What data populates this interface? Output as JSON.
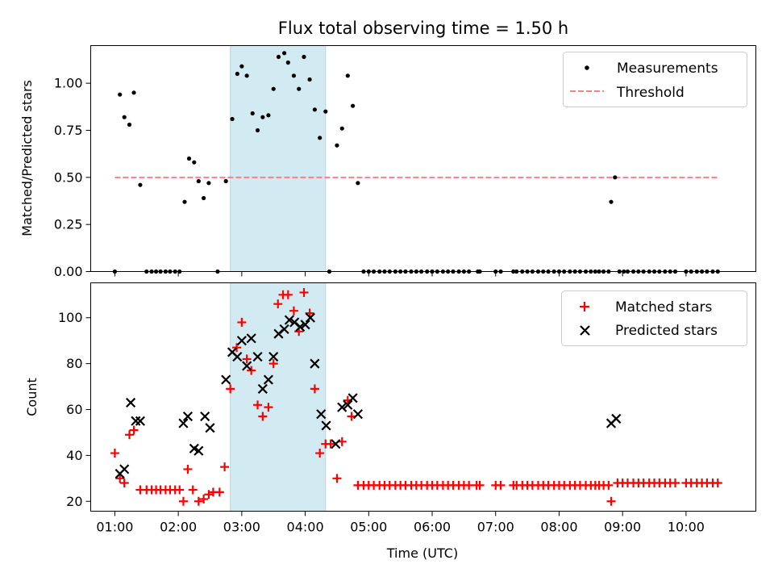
{
  "chart_data": [
    {
      "type": "scatter",
      "title": "Flux total observing time = 1.50 h",
      "ylabel": "Matched/Predicted stars",
      "xlabel": "",
      "xlim": [
        0.62,
        11.1
      ],
      "ylim": [
        0.0,
        1.2
      ],
      "x_ticks": [
        "01:00",
        "02:00",
        "03:00",
        "04:00",
        "05:00",
        "06:00",
        "07:00",
        "08:00",
        "09:00",
        "10:00"
      ],
      "y_ticks": [
        "0.00",
        "0.25",
        "0.50",
        "0.75",
        "1.00"
      ],
      "highlight_span": [
        2.82,
        4.32
      ],
      "highlight_color": "#add8e6",
      "legend": [
        "Measurements",
        "Threshold"
      ],
      "legend_position": "top-right",
      "threshold": {
        "name": "Threshold",
        "value": 0.5,
        "x_range": [
          1.0,
          10.5
        ],
        "color": "#ff7f7f",
        "style": "dashed"
      },
      "series": [
        {
          "name": "Measurements",
          "marker": "dot",
          "color": "#000000",
          "points": [
            [
              1.0,
              0.0
            ],
            [
              1.08,
              0.94
            ],
            [
              1.15,
              0.82
            ],
            [
              1.23,
              0.78
            ],
            [
              1.3,
              0.95
            ],
            [
              1.4,
              0.46
            ],
            [
              1.5,
              0.0
            ],
            [
              1.58,
              0.0
            ],
            [
              1.65,
              0.0
            ],
            [
              1.72,
              0.0
            ],
            [
              1.8,
              0.0
            ],
            [
              1.87,
              0.0
            ],
            [
              1.95,
              0.0
            ],
            [
              2.02,
              0.0
            ],
            [
              2.1,
              0.37
            ],
            [
              2.17,
              0.6
            ],
            [
              2.25,
              0.58
            ],
            [
              2.32,
              0.48
            ],
            [
              2.4,
              0.39
            ],
            [
              2.48,
              0.47
            ],
            [
              2.62,
              0.0
            ],
            [
              2.75,
              0.48
            ],
            [
              2.85,
              0.81
            ],
            [
              2.93,
              1.05
            ],
            [
              3.0,
              1.09
            ],
            [
              3.08,
              1.04
            ],
            [
              3.17,
              0.84
            ],
            [
              3.25,
              0.75
            ],
            [
              3.33,
              0.82
            ],
            [
              3.42,
              0.83
            ],
            [
              3.5,
              0.97
            ],
            [
              3.58,
              1.14
            ],
            [
              3.67,
              1.16
            ],
            [
              3.73,
              1.11
            ],
            [
              3.82,
              1.04
            ],
            [
              3.9,
              0.97
            ],
            [
              3.98,
              1.14
            ],
            [
              4.07,
              1.02
            ],
            [
              4.15,
              0.86
            ],
            [
              4.23,
              0.71
            ],
            [
              4.32,
              0.85
            ],
            [
              4.38,
              0.0
            ],
            [
              4.5,
              0.67
            ],
            [
              4.58,
              0.76
            ],
            [
              4.67,
              1.04
            ],
            [
              4.75,
              0.88
            ],
            [
              4.83,
              0.47
            ],
            [
              4.92,
              0.0
            ],
            [
              5.0,
              0.0
            ],
            [
              5.08,
              0.0
            ],
            [
              5.17,
              0.0
            ],
            [
              5.25,
              0.0
            ],
            [
              5.33,
              0.0
            ],
            [
              5.42,
              0.0
            ],
            [
              5.5,
              0.0
            ],
            [
              5.58,
              0.0
            ],
            [
              5.67,
              0.0
            ],
            [
              5.75,
              0.0
            ],
            [
              5.83,
              0.0
            ],
            [
              5.92,
              0.0
            ],
            [
              6.0,
              0.0
            ],
            [
              6.08,
              0.0
            ],
            [
              6.17,
              0.0
            ],
            [
              6.25,
              0.0
            ],
            [
              6.33,
              0.0
            ],
            [
              6.42,
              0.0
            ],
            [
              6.5,
              0.0
            ],
            [
              6.58,
              0.0
            ],
            [
              6.72,
              0.0
            ],
            [
              6.75,
              0.0
            ],
            [
              7.0,
              0.0
            ],
            [
              7.08,
              0.0
            ],
            [
              7.28,
              0.0
            ],
            [
              7.33,
              0.0
            ],
            [
              7.42,
              0.0
            ],
            [
              7.5,
              0.0
            ],
            [
              7.58,
              0.0
            ],
            [
              7.67,
              0.0
            ],
            [
              7.75,
              0.0
            ],
            [
              7.83,
              0.0
            ],
            [
              7.92,
              0.0
            ],
            [
              8.0,
              0.0
            ],
            [
              8.08,
              0.0
            ],
            [
              8.17,
              0.0
            ],
            [
              8.25,
              0.0
            ],
            [
              8.33,
              0.0
            ],
            [
              8.42,
              0.0
            ],
            [
              8.5,
              0.0
            ],
            [
              8.57,
              0.0
            ],
            [
              8.63,
              0.0
            ],
            [
              8.7,
              0.0
            ],
            [
              8.78,
              0.0
            ],
            [
              8.82,
              0.37
            ],
            [
              8.88,
              0.5
            ],
            [
              8.95,
              0.0
            ],
            [
              9.02,
              0.0
            ],
            [
              9.08,
              0.0
            ],
            [
              9.17,
              0.0
            ],
            [
              9.25,
              0.0
            ],
            [
              9.33,
              0.0
            ],
            [
              9.42,
              0.0
            ],
            [
              9.5,
              0.0
            ],
            [
              9.58,
              0.0
            ],
            [
              9.67,
              0.0
            ],
            [
              9.75,
              0.0
            ],
            [
              9.83,
              0.0
            ],
            [
              10.0,
              0.0
            ],
            [
              10.08,
              0.0
            ],
            [
              10.17,
              0.0
            ],
            [
              10.25,
              0.0
            ],
            [
              10.33,
              0.0
            ],
            [
              10.42,
              0.0
            ],
            [
              10.5,
              0.0
            ]
          ]
        }
      ]
    },
    {
      "type": "scatter",
      "title": "",
      "ylabel": "Count",
      "xlabel": "Time (UTC)",
      "xlim": [
        0.62,
        11.1
      ],
      "ylim": [
        15.7,
        115.2
      ],
      "x_ticks": [
        "01:00",
        "02:00",
        "03:00",
        "04:00",
        "05:00",
        "06:00",
        "07:00",
        "08:00",
        "09:00",
        "10:00"
      ],
      "y_ticks": [
        "20",
        "40",
        "60",
        "80",
        "100"
      ],
      "highlight_span": [
        2.82,
        4.32
      ],
      "highlight_color": "#add8e6",
      "legend": [
        "Matched stars",
        "Predicted stars"
      ],
      "legend_position": "top-right",
      "series": [
        {
          "name": "Matched stars",
          "marker": "plus",
          "color": "#ff0000",
          "points": [
            [
              1.0,
              41
            ],
            [
              1.08,
              30
            ],
            [
              1.15,
              28
            ],
            [
              1.23,
              49
            ],
            [
              1.3,
              51
            ],
            [
              1.4,
              25
            ],
            [
              1.5,
              25
            ],
            [
              1.58,
              25
            ],
            [
              1.65,
              25
            ],
            [
              1.72,
              25
            ],
            [
              1.8,
              25
            ],
            [
              1.87,
              25
            ],
            [
              1.95,
              25
            ],
            [
              2.02,
              25
            ],
            [
              2.08,
              20
            ],
            [
              2.15,
              34
            ],
            [
              2.23,
              25
            ],
            [
              2.32,
              20
            ],
            [
              2.4,
              21
            ],
            [
              2.48,
              23
            ],
            [
              2.55,
              24
            ],
            [
              2.65,
              24
            ],
            [
              2.73,
              35
            ],
            [
              2.82,
              69
            ],
            [
              2.92,
              87
            ],
            [
              3.0,
              98
            ],
            [
              3.08,
              82
            ],
            [
              3.15,
              77
            ],
            [
              3.25,
              62
            ],
            [
              3.33,
              57
            ],
            [
              3.42,
              61
            ],
            [
              3.5,
              80
            ],
            [
              3.57,
              106
            ],
            [
              3.65,
              110
            ],
            [
              3.73,
              110
            ],
            [
              3.82,
              103
            ],
            [
              3.9,
              94
            ],
            [
              3.98,
              111
            ],
            [
              4.07,
              102
            ],
            [
              4.15,
              69
            ],
            [
              4.23,
              41
            ],
            [
              4.32,
              45
            ],
            [
              4.4,
              45
            ],
            [
              4.5,
              30
            ],
            [
              4.58,
              46
            ],
            [
              4.67,
              64
            ],
            [
              4.73,
              57
            ],
            [
              4.83,
              27
            ],
            [
              4.92,
              27
            ],
            [
              5.0,
              27
            ],
            [
              5.08,
              27
            ],
            [
              5.17,
              27
            ],
            [
              5.25,
              27
            ],
            [
              5.33,
              27
            ],
            [
              5.42,
              27
            ],
            [
              5.5,
              27
            ],
            [
              5.58,
              27
            ],
            [
              5.67,
              27
            ],
            [
              5.75,
              27
            ],
            [
              5.83,
              27
            ],
            [
              5.92,
              27
            ],
            [
              6.0,
              27
            ],
            [
              6.08,
              27
            ],
            [
              6.17,
              27
            ],
            [
              6.25,
              27
            ],
            [
              6.33,
              27
            ],
            [
              6.42,
              27
            ],
            [
              6.5,
              27
            ],
            [
              6.58,
              27
            ],
            [
              6.7,
              27
            ],
            [
              6.75,
              27
            ],
            [
              7.0,
              27
            ],
            [
              7.08,
              27
            ],
            [
              7.28,
              27
            ],
            [
              7.33,
              27
            ],
            [
              7.42,
              27
            ],
            [
              7.5,
              27
            ],
            [
              7.58,
              27
            ],
            [
              7.67,
              27
            ],
            [
              7.75,
              27
            ],
            [
              7.83,
              27
            ],
            [
              7.92,
              27
            ],
            [
              8.0,
              27
            ],
            [
              8.08,
              27
            ],
            [
              8.17,
              27
            ],
            [
              8.25,
              27
            ],
            [
              8.33,
              27
            ],
            [
              8.42,
              27
            ],
            [
              8.5,
              27
            ],
            [
              8.57,
              27
            ],
            [
              8.63,
              27
            ],
            [
              8.7,
              27
            ],
            [
              8.78,
              27
            ],
            [
              8.82,
              20
            ],
            [
              8.92,
              28
            ],
            [
              9.0,
              28
            ],
            [
              9.08,
              28
            ],
            [
              9.17,
              28
            ],
            [
              9.25,
              28
            ],
            [
              9.33,
              28
            ],
            [
              9.42,
              28
            ],
            [
              9.5,
              28
            ],
            [
              9.58,
              28
            ],
            [
              9.67,
              28
            ],
            [
              9.75,
              28
            ],
            [
              9.83,
              28
            ],
            [
              10.0,
              28
            ],
            [
              10.08,
              28
            ],
            [
              10.17,
              28
            ],
            [
              10.25,
              28
            ],
            [
              10.33,
              28
            ],
            [
              10.42,
              28
            ],
            [
              10.5,
              28
            ]
          ]
        },
        {
          "name": "Predicted stars",
          "marker": "x",
          "color": "#000000",
          "points": [
            [
              1.08,
              32
            ],
            [
              1.15,
              34
            ],
            [
              1.25,
              63
            ],
            [
              1.33,
              55
            ],
            [
              1.4,
              55
            ],
            [
              2.08,
              54
            ],
            [
              2.15,
              57
            ],
            [
              2.25,
              43
            ],
            [
              2.32,
              42
            ],
            [
              2.42,
              57
            ],
            [
              2.5,
              52
            ],
            [
              2.75,
              73
            ],
            [
              2.85,
              85
            ],
            [
              2.93,
              83
            ],
            [
              3.0,
              90
            ],
            [
              3.08,
              79
            ],
            [
              3.15,
              91
            ],
            [
              3.25,
              83
            ],
            [
              3.33,
              69
            ],
            [
              3.42,
              73
            ],
            [
              3.5,
              83
            ],
            [
              3.58,
              93
            ],
            [
              3.67,
              95
            ],
            [
              3.75,
              99
            ],
            [
              3.83,
              98
            ],
            [
              3.92,
              96
            ],
            [
              4.0,
              97
            ],
            [
              4.08,
              100
            ],
            [
              4.15,
              80
            ],
            [
              4.25,
              58
            ],
            [
              4.33,
              53
            ],
            [
              4.48,
              45
            ],
            [
              4.58,
              61
            ],
            [
              4.67,
              62
            ],
            [
              4.75,
              65
            ],
            [
              4.83,
              58
            ],
            [
              8.82,
              54
            ],
            [
              8.9,
              56
            ]
          ]
        }
      ]
    }
  ]
}
